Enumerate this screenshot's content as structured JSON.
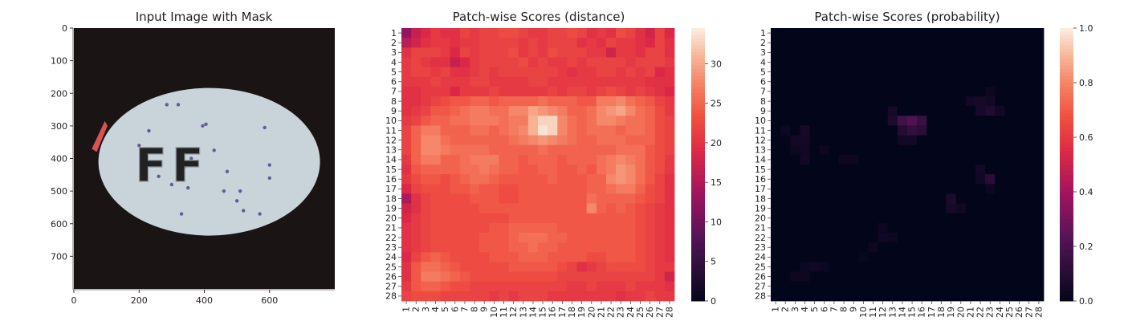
{
  "chart_data": [
    {
      "type": "image",
      "title": "Input Image with Mask",
      "xlim": [
        0,
        800
      ],
      "ylim": [
        0,
        800
      ],
      "x_ticks": [
        "0",
        "200",
        "400",
        "600"
      ],
      "y_ticks": [
        "0",
        "100",
        "200",
        "300",
        "400",
        "500",
        "600",
        "700"
      ],
      "image_colors": {
        "background": "#1a1414",
        "pill": "#c8d3da",
        "specks": "#4a3f86",
        "mask": "#ef5a5a"
      },
      "embossed_text": "FF"
    },
    {
      "type": "heatmap",
      "title": "Patch-wise Scores (distance)",
      "x_tick_labels": [
        "1",
        "2",
        "3",
        "4",
        "5",
        "6",
        "7",
        "8",
        "9",
        "10",
        "11",
        "12",
        "13",
        "14",
        "15",
        "16",
        "17",
        "18",
        "19",
        "20",
        "21",
        "22",
        "23",
        "24",
        "25",
        "26",
        "27",
        "28"
      ],
      "y_tick_labels": [
        "1",
        "2",
        "3",
        "4",
        "5",
        "6",
        "7",
        "8",
        "9",
        "10",
        "11",
        "12",
        "13",
        "14",
        "15",
        "16",
        "17",
        "18",
        "19",
        "20",
        "21",
        "22",
        "23",
        "24",
        "25",
        "26",
        "27",
        "28"
      ],
      "colorbar": {
        "min": 0,
        "max": 34.5,
        "ticks": [
          "0",
          "5",
          "10",
          "15",
          "20",
          "25",
          "30"
        ],
        "colormap": "rocket"
      },
      "grid_rows": 28,
      "grid_cols": 28,
      "values": [
        [
          13,
          17,
          19,
          21,
          20,
          20,
          22,
          21,
          22,
          22,
          23,
          23,
          22,
          21,
          21,
          22,
          22,
          23,
          22,
          20,
          21,
          20,
          23,
          22,
          20,
          18,
          22,
          19
        ],
        [
          16,
          18,
          20,
          21,
          21,
          20,
          21,
          21,
          22,
          22,
          22,
          22,
          21,
          22,
          21,
          22,
          22,
          22,
          20,
          21,
          20,
          22,
          21,
          21,
          20,
          19,
          22,
          20
        ],
        [
          20,
          22,
          22,
          22,
          21,
          19,
          22,
          21,
          22,
          22,
          22,
          23,
          21,
          22,
          21,
          23,
          22,
          22,
          22,
          21,
          21,
          18,
          21,
          21,
          20,
          22,
          22,
          20
        ],
        [
          21,
          22,
          21,
          20,
          20,
          17,
          19,
          21,
          22,
          22,
          22,
          22,
          23,
          21,
          22,
          21,
          21,
          22,
          21,
          22,
          22,
          22,
          22,
          21,
          22,
          22,
          22,
          21
        ],
        [
          21,
          22,
          22,
          21,
          22,
          20,
          20,
          21,
          22,
          21,
          22,
          22,
          22,
          22,
          22,
          22,
          21,
          20,
          21,
          21,
          22,
          22,
          21,
          22,
          21,
          22,
          19,
          20
        ],
        [
          21,
          21,
          21,
          22,
          21,
          21,
          21,
          22,
          22,
          21,
          21,
          21,
          21,
          22,
          22,
          21,
          21,
          21,
          21,
          21,
          21,
          21,
          21,
          21,
          21,
          20,
          20,
          20
        ],
        [
          20,
          20,
          21,
          21,
          21,
          19,
          21,
          21,
          21,
          22,
          21,
          21,
          21,
          21,
          21,
          22,
          21,
          22,
          22,
          21,
          22,
          23,
          22,
          21,
          22,
          21,
          20,
          19
        ],
        [
          20,
          20,
          21,
          22,
          23,
          24,
          24,
          25,
          25,
          24,
          25,
          25,
          25,
          25,
          26,
          25,
          25,
          25,
          24,
          24,
          27,
          27,
          28,
          26,
          25,
          24,
          22,
          21
        ],
        [
          20,
          21,
          22,
          24,
          24,
          25,
          26,
          27,
          27,
          26,
          26,
          28,
          28,
          30,
          29,
          28,
          27,
          25,
          25,
          26,
          28,
          29,
          30,
          28,
          26,
          25,
          23,
          21
        ],
        [
          21,
          22,
          24,
          25,
          25,
          26,
          26,
          27,
          27,
          27,
          26,
          27,
          27,
          31,
          33,
          33,
          28,
          26,
          25,
          26,
          28,
          28,
          27,
          26,
          26,
          25,
          23,
          22
        ],
        [
          22,
          25,
          27,
          27,
          25,
          25,
          25,
          26,
          26,
          25,
          26,
          27,
          28,
          31,
          34,
          33,
          28,
          26,
          25,
          26,
          26,
          26,
          25,
          26,
          26,
          25,
          23,
          22
        ],
        [
          22,
          25,
          28,
          28,
          26,
          25,
          25,
          25,
          25,
          25,
          25,
          26,
          27,
          28,
          29,
          28,
          27,
          26,
          25,
          25,
          26,
          26,
          26,
          25,
          25,
          25,
          23,
          22
        ],
        [
          22,
          25,
          28,
          28,
          27,
          26,
          26,
          26,
          26,
          25,
          25,
          25,
          25,
          25,
          26,
          25,
          25,
          25,
          25,
          25,
          25,
          25,
          26,
          26,
          26,
          24,
          23,
          22
        ],
        [
          21,
          25,
          27,
          27,
          25,
          25,
          26,
          27,
          27,
          27,
          25,
          25,
          24,
          25,
          25,
          25,
          24,
          25,
          25,
          25,
          26,
          27,
          28,
          27,
          26,
          24,
          23,
          21
        ],
        [
          20,
          24,
          25,
          25,
          25,
          25,
          26,
          26,
          27,
          26,
          25,
          25,
          24,
          24,
          25,
          25,
          24,
          24,
          25,
          24,
          26,
          27,
          29,
          28,
          26,
          24,
          23,
          21
        ],
        [
          21,
          23,
          24,
          24,
          23,
          24,
          25,
          26,
          26,
          25,
          24,
          24,
          24,
          24,
          24,
          25,
          24,
          24,
          24,
          25,
          25,
          28,
          29,
          28,
          26,
          24,
          22,
          20
        ],
        [
          19,
          22,
          23,
          23,
          23,
          24,
          24,
          25,
          24,
          24,
          23,
          23,
          24,
          24,
          24,
          24,
          24,
          24,
          24,
          25,
          25,
          26,
          27,
          27,
          25,
          23,
          22,
          20
        ],
        [
          15,
          20,
          22,
          23,
          23,
          23,
          23,
          24,
          24,
          24,
          23,
          23,
          24,
          24,
          24,
          24,
          24,
          24,
          24,
          26,
          25,
          25,
          25,
          25,
          24,
          23,
          22,
          20
        ],
        [
          18,
          20,
          22,
          23,
          23,
          23,
          23,
          23,
          24,
          24,
          24,
          24,
          24,
          24,
          24,
          24,
          24,
          24,
          24,
          28,
          25,
          24,
          25,
          24,
          23,
          22,
          21,
          20
        ],
        [
          19,
          21,
          22,
          23,
          23,
          23,
          23,
          23,
          23,
          23,
          23,
          24,
          24,
          24,
          24,
          24,
          24,
          24,
          24,
          24,
          24,
          24,
          24,
          24,
          23,
          22,
          21,
          20
        ],
        [
          20,
          21,
          22,
          23,
          23,
          23,
          23,
          23,
          23,
          24,
          24,
          25,
          25,
          25,
          25,
          25,
          24,
          24,
          24,
          24,
          24,
          24,
          24,
          24,
          23,
          22,
          21,
          20
        ],
        [
          20,
          21,
          22,
          23,
          23,
          23,
          23,
          23,
          24,
          24,
          24,
          25,
          26,
          26,
          26,
          25,
          25,
          24,
          24,
          24,
          24,
          24,
          24,
          24,
          23,
          22,
          21,
          20
        ],
        [
          20,
          21,
          22,
          23,
          23,
          23,
          23,
          23,
          24,
          24,
          24,
          25,
          25,
          26,
          25,
          25,
          24,
          24,
          24,
          24,
          24,
          24,
          24,
          24,
          23,
          22,
          21,
          20
        ],
        [
          19,
          22,
          24,
          25,
          24,
          23,
          23,
          23,
          23,
          24,
          24,
          24,
          25,
          25,
          25,
          24,
          24,
          24,
          24,
          23,
          23,
          24,
          24,
          24,
          23,
          22,
          21,
          20
        ],
        [
          20,
          24,
          26,
          26,
          25,
          24,
          23,
          23,
          23,
          23,
          23,
          24,
          24,
          24,
          24,
          24,
          23,
          22,
          20,
          21,
          22,
          23,
          23,
          23,
          23,
          22,
          21,
          21
        ],
        [
          20,
          24,
          27,
          27,
          26,
          25,
          24,
          23,
          23,
          23,
          23,
          23,
          23,
          23,
          23,
          23,
          22,
          22,
          22,
          22,
          22,
          22,
          22,
          22,
          22,
          22,
          21,
          18
        ],
        [
          21,
          24,
          25,
          25,
          24,
          23,
          23,
          22,
          22,
          22,
          22,
          22,
          22,
          22,
          22,
          22,
          22,
          21,
          21,
          22,
          21,
          21,
          21,
          22,
          21,
          21,
          21,
          20
        ],
        [
          22,
          23,
          23,
          23,
          22,
          22,
          22,
          22,
          22,
          21,
          22,
          21,
          22,
          22,
          22,
          21,
          21,
          21,
          21,
          21,
          21,
          21,
          20,
          21,
          21,
          22,
          21,
          21
        ]
      ]
    },
    {
      "type": "heatmap",
      "title": "Patch-wise Scores (probability)",
      "x_tick_labels": [
        "1",
        "2",
        "3",
        "4",
        "5",
        "6",
        "7",
        "8",
        "9",
        "10",
        "11",
        "12",
        "13",
        "14",
        "15",
        "16",
        "17",
        "18",
        "19",
        "20",
        "21",
        "22",
        "23",
        "24",
        "25",
        "26",
        "27",
        "28"
      ],
      "y_tick_labels": [
        "1",
        "2",
        "3",
        "4",
        "5",
        "6",
        "7",
        "8",
        "9",
        "10",
        "11",
        "12",
        "13",
        "14",
        "15",
        "16",
        "17",
        "18",
        "19",
        "20",
        "21",
        "22",
        "23",
        "24",
        "25",
        "26",
        "27",
        "28"
      ],
      "colorbar": {
        "min": 0,
        "max": 1.0,
        "ticks": [
          "0.0",
          "0.2",
          "0.4",
          "0.6",
          "0.8",
          "1.0"
        ],
        "colormap": "rocket"
      },
      "grid_rows": 28,
      "grid_cols": 28,
      "cell_values": [
        {
          "row": 7,
          "col": 23,
          "value": 0.03
        },
        {
          "row": 8,
          "col": 21,
          "value": 0.05
        },
        {
          "row": 8,
          "col": 22,
          "value": 0.06
        },
        {
          "row": 8,
          "col": 23,
          "value": 0.05
        },
        {
          "row": 9,
          "col": 13,
          "value": 0.06
        },
        {
          "row": 9,
          "col": 22,
          "value": 0.06
        },
        {
          "row": 9,
          "col": 23,
          "value": 0.09
        },
        {
          "row": 9,
          "col": 24,
          "value": 0.05
        },
        {
          "row": 10,
          "col": 13,
          "value": 0.08
        },
        {
          "row": 10,
          "col": 14,
          "value": 0.18
        },
        {
          "row": 10,
          "col": 15,
          "value": 0.22
        },
        {
          "row": 10,
          "col": 16,
          "value": 0.16
        },
        {
          "row": 11,
          "col": 2,
          "value": 0.03
        },
        {
          "row": 11,
          "col": 4,
          "value": 0.06
        },
        {
          "row": 11,
          "col": 14,
          "value": 0.1
        },
        {
          "row": 11,
          "col": 15,
          "value": 0.14
        },
        {
          "row": 11,
          "col": 16,
          "value": 0.12
        },
        {
          "row": 12,
          "col": 3,
          "value": 0.05
        },
        {
          "row": 12,
          "col": 4,
          "value": 0.05
        },
        {
          "row": 12,
          "col": 14,
          "value": 0.05
        },
        {
          "row": 12,
          "col": 15,
          "value": 0.05
        },
        {
          "row": 13,
          "col": 3,
          "value": 0.03
        },
        {
          "row": 13,
          "col": 4,
          "value": 0.04
        },
        {
          "row": 13,
          "col": 6,
          "value": 0.03
        },
        {
          "row": 14,
          "col": 4,
          "value": 0.05
        },
        {
          "row": 14,
          "col": 8,
          "value": 0.03
        },
        {
          "row": 14,
          "col": 9,
          "value": 0.03
        },
        {
          "row": 15,
          "col": 22,
          "value": 0.05
        },
        {
          "row": 16,
          "col": 23,
          "value": 0.12
        },
        {
          "row": 16,
          "col": 22,
          "value": 0.04
        },
        {
          "row": 17,
          "col": 23,
          "value": 0.03
        },
        {
          "row": 18,
          "col": 19,
          "value": 0.08
        },
        {
          "row": 19,
          "col": 19,
          "value": 0.06
        },
        {
          "row": 19,
          "col": 20,
          "value": 0.04
        },
        {
          "row": 21,
          "col": 12,
          "value": 0.03
        },
        {
          "row": 22,
          "col": 12,
          "value": 0.04
        },
        {
          "row": 22,
          "col": 13,
          "value": 0.03
        },
        {
          "row": 23,
          "col": 11,
          "value": 0.03
        },
        {
          "row": 24,
          "col": 10,
          "value": 0.02
        },
        {
          "row": 25,
          "col": 4,
          "value": 0.03
        },
        {
          "row": 25,
          "col": 5,
          "value": 0.04
        },
        {
          "row": 25,
          "col": 6,
          "value": 0.03
        },
        {
          "row": 26,
          "col": 3,
          "value": 0.03
        },
        {
          "row": 26,
          "col": 4,
          "value": 0.03
        }
      ]
    }
  ]
}
